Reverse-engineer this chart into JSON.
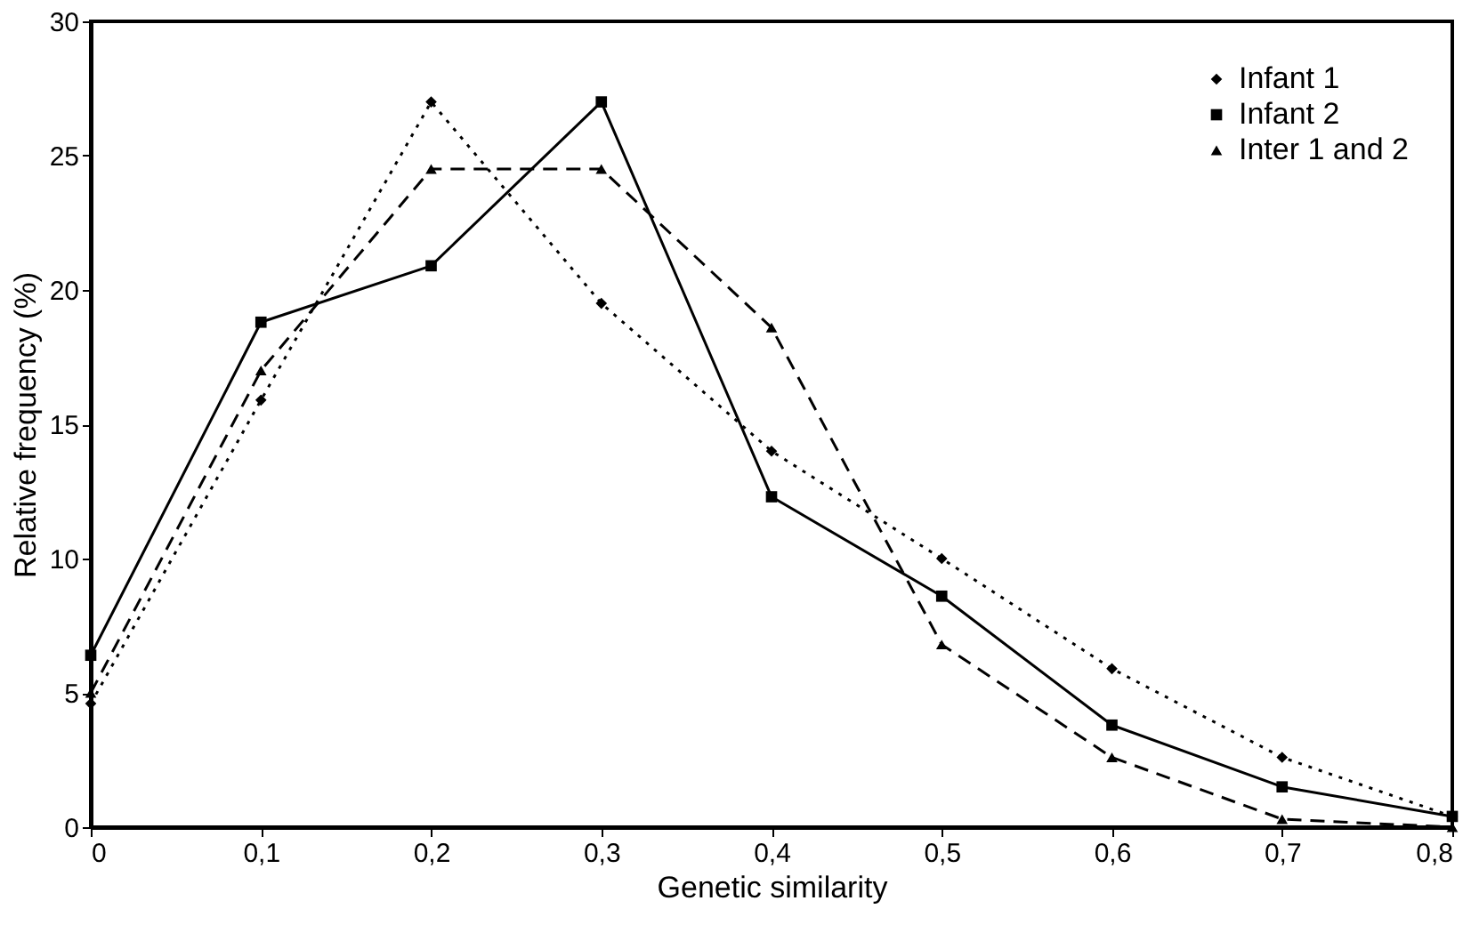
{
  "chart_data": {
    "type": "line",
    "xlabel": "Genetic similarity",
    "ylabel": "Relative frequency (%)",
    "x": [
      0,
      0.1,
      0.2,
      0.3,
      0.4,
      0.5,
      0.6,
      0.7,
      0.8
    ],
    "series": [
      {
        "name": "Infant 1",
        "color": "#000000",
        "marker": "diamond",
        "line_style": "dotted",
        "values": [
          4.6,
          15.9,
          27.0,
          19.5,
          14.0,
          10.0,
          5.9,
          2.6,
          0.4
        ]
      },
      {
        "name": "Infant 2",
        "color": "#000000",
        "marker": "square",
        "line_style": "solid",
        "values": [
          6.4,
          18.8,
          20.9,
          27.0,
          12.3,
          8.6,
          3.8,
          1.5,
          0.4
        ]
      },
      {
        "name": "Inter 1 and 2",
        "color": "#000000",
        "marker": "triangle",
        "line_style": "dashed",
        "values": [
          5.0,
          17.0,
          24.5,
          24.5,
          18.6,
          6.8,
          2.6,
          0.3,
          0.0
        ]
      }
    ],
    "xlim": [
      0,
      0.8
    ],
    "xticks": [
      {
        "value": 0,
        "label": "0"
      },
      {
        "value": 0.1,
        "label": "0,1"
      },
      {
        "value": 0.2,
        "label": "0,2"
      },
      {
        "value": 0.3,
        "label": "0,3"
      },
      {
        "value": 0.4,
        "label": "0,4"
      },
      {
        "value": 0.5,
        "label": "0,5"
      },
      {
        "value": 0.6,
        "label": "0,6"
      },
      {
        "value": 0.7,
        "label": "0,7"
      },
      {
        "value": 0.8,
        "label": "0,8"
      }
    ],
    "ylim": [
      0,
      30
    ],
    "yticks": [
      0,
      5,
      10,
      15,
      20,
      25,
      30
    ],
    "grid": false,
    "legend": "top right"
  }
}
